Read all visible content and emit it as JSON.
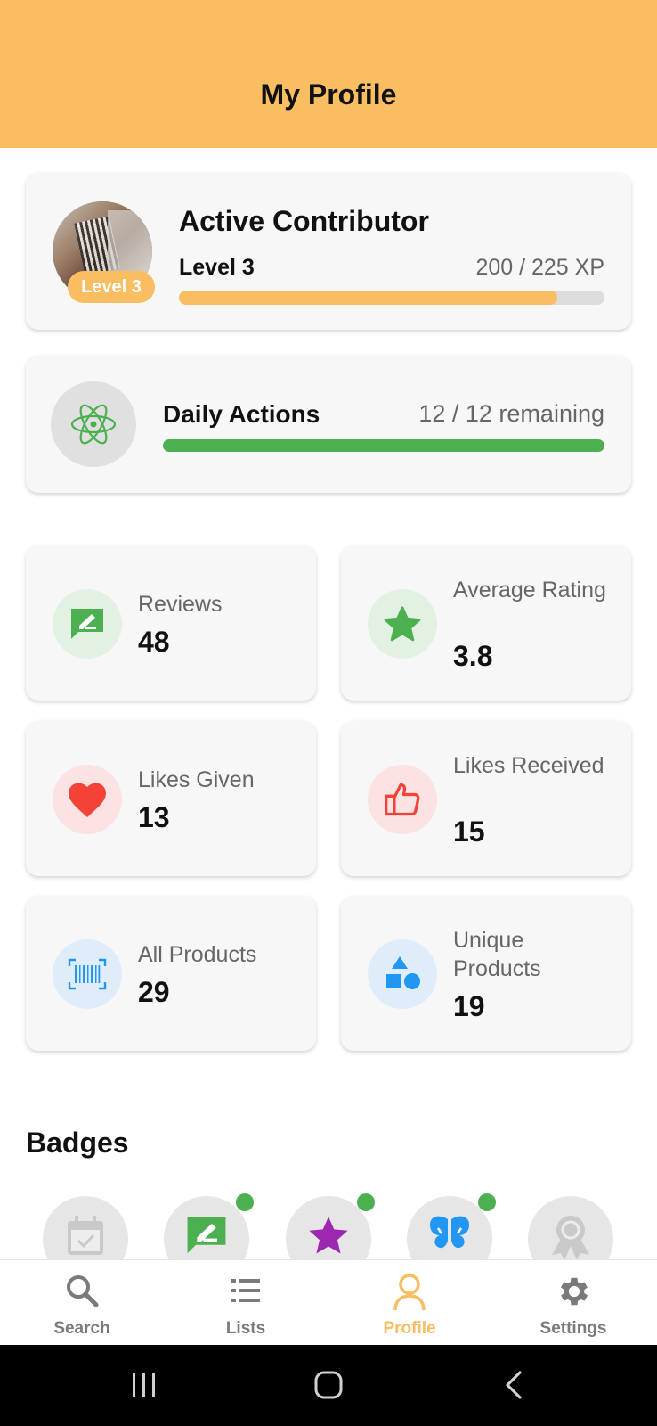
{
  "header": {
    "title": "My Profile"
  },
  "profile": {
    "title": "Active Contributor",
    "level_badge": "Level 3",
    "level_label": "Level 3",
    "xp_text": "200 / 225 XP",
    "xp_progress": 0.889
  },
  "daily": {
    "title": "Daily Actions",
    "remaining_text": "12 / 12 remaining",
    "progress": 1.0,
    "icon": "atom-icon"
  },
  "stats": [
    {
      "label": "Reviews",
      "value": "48",
      "icon": "review-icon",
      "color": "#4caf50"
    },
    {
      "label": "Average Rating",
      "value": "3.8",
      "icon": "star-icon",
      "color": "#4caf50"
    },
    {
      "label": "Likes Given",
      "value": "13",
      "icon": "heart-icon",
      "color": "#f44336"
    },
    {
      "label": "Likes Received",
      "value": "15",
      "icon": "thumbs-up-icon",
      "color": "#f44336"
    },
    {
      "label": "All Products",
      "value": "29",
      "icon": "barcode-icon",
      "color": "#2196f3"
    },
    {
      "label": "Unique Products",
      "value": "19",
      "icon": "shapes-icon",
      "color": "#2196f3"
    }
  ],
  "badges": {
    "title": "Badges",
    "items": [
      {
        "icon": "calendar-check-icon",
        "earned": false
      },
      {
        "icon": "review-icon",
        "earned": true
      },
      {
        "icon": "star-icon",
        "earned": true
      },
      {
        "icon": "butterfly-icon",
        "earned": true
      },
      {
        "icon": "award-icon",
        "earned": false
      }
    ]
  },
  "nav": {
    "items": [
      {
        "label": "Search",
        "icon": "search-icon",
        "active": false
      },
      {
        "label": "Lists",
        "icon": "list-icon",
        "active": false
      },
      {
        "label": "Profile",
        "icon": "person-icon",
        "active": true
      },
      {
        "label": "Settings",
        "icon": "gear-icon",
        "active": false
      }
    ]
  },
  "colors": {
    "accent": "#f9bd62",
    "green": "#4caf50",
    "red": "#f44336",
    "blue": "#2196f3",
    "purple": "#9c27b0"
  }
}
